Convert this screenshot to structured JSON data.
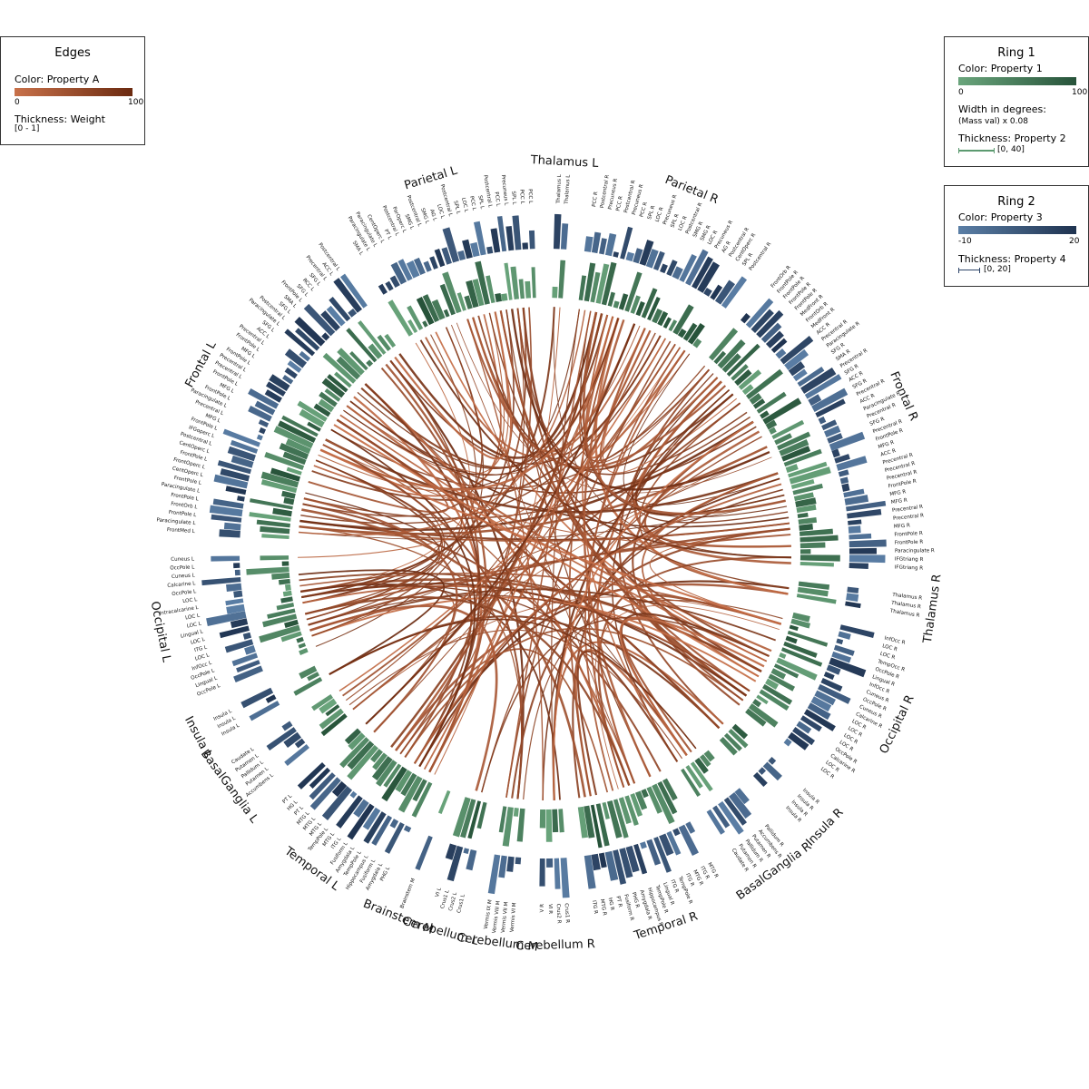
{
  "legends": {
    "edges": {
      "title": "Edges",
      "color_label": "Color: Property A",
      "color_min": "0",
      "color_max": "100",
      "color_from": "#c8714a",
      "color_to": "#6b2a10",
      "thickness_label": "Thickness: Weight",
      "thickness_range": "[0  -  1]"
    },
    "ring1": {
      "title": "Ring 1",
      "color_label": "Color: Property 1",
      "color_min": "0",
      "color_max": "100",
      "color_from": "#6aa57c",
      "color_to": "#27533a",
      "width_label": "Width in degrees:",
      "width_formula": "(Mass val) x 0.08",
      "thickness_label": "Thickness: Property 2",
      "thickness_range": "[0,  40]"
    },
    "ring2": {
      "title": "Ring 2",
      "color_label": "Color: Property 3",
      "color_min": "-10",
      "color_max": "20",
      "color_from": "#5b7fa6",
      "color_to": "#1f3350",
      "thickness_label": "Thickness: Property 4",
      "thickness_range": "[0,  20]"
    }
  },
  "groups": [
    {
      "name": "Thalamus L",
      "labels": [
        "Thalamus L",
        "Thalamus L"
      ]
    },
    {
      "name": "Parietal R",
      "labels": [
        "PCC R",
        "Postcentral R",
        "Precuneus R",
        "PCC R",
        "Postcentral R",
        "Precuneus R",
        "PCC R",
        "SPL R",
        "LOC R",
        "Precuneus R",
        "SPL R",
        "LOC R",
        "Postcentral R",
        "SMG R",
        "SMG R",
        "LOC R",
        "Precuneus R",
        "AG R",
        "Postcentral R",
        "CentOperc R",
        "SPL R",
        "Postcentral R"
      ]
    },
    {
      "name": "Frontal R",
      "labels": [
        "FrontOrb R",
        "FrontPole R",
        "FrontPole R",
        "FrontPole R",
        "FrontPole R",
        "MedFront R",
        "FrontOrb R",
        "MedFront R",
        "ACC R",
        "Precentral R",
        "Paracingulate R",
        "SFG R",
        "SMA R",
        "Precentral R",
        "SFG R",
        "ACC R",
        "SFG R",
        "Precentral R",
        "ACC R",
        "Paracingulate R",
        "Precentral R",
        "SFG R",
        "Precentral R",
        "FrontPole R",
        "MFG R",
        "ACC R",
        "Precentral R",
        "Precentral R",
        "Precentral R",
        "FrontPole R",
        "MFG R",
        "MFG R",
        "Precentral R",
        "Precentral R",
        "MFG R",
        "FrontPole R",
        "FrontPole R",
        "Paracingulate R",
        "IFGtriang R",
        "IFGtriang R"
      ]
    },
    {
      "name": "Thalamus R",
      "labels": [
        "Thalamus R",
        "Thalamus R",
        "Thalamus R"
      ]
    },
    {
      "name": "Occipital R",
      "labels": [
        "InfOcc R",
        "LOC R",
        "LOC R",
        "TempOcc R",
        "OccPole R",
        "Lingual R",
        "InfOcc R",
        "Cuneus R",
        "OccPole R",
        "Cuneus R",
        "Calcarine R",
        "LOC R",
        "LOC R",
        "LOC R",
        "LOC R",
        "OccPole R",
        "Calcarine R",
        "LOC R",
        "LOC R"
      ]
    },
    {
      "name": "Insula R",
      "labels": [
        "Insula R",
        "Insula R",
        "Insula R",
        "Insula R"
      ]
    },
    {
      "name": "BasalGanglia R",
      "labels": [
        "Pallidum R",
        "Accumbens R",
        "Putamen R",
        "Pallidum R",
        "Putamen R",
        "Caudate R"
      ]
    },
    {
      "name": "Temporal R",
      "labels": [
        "MTG R",
        "ITG R",
        "MTG R",
        "ITG R",
        "TempPole R",
        "ITG R",
        "Lingual R",
        "TempPole R",
        "Hippocampus R",
        "Amygdala R",
        "PHG R",
        "Fusiform R",
        "PT R",
        "HG R",
        "MTG R",
        "ITG R"
      ]
    },
    {
      "name": "Cerebellum R",
      "labels": [
        "Crus1 R",
        "Crus2 R",
        "VI R",
        "V R"
      ]
    },
    {
      "name": "Cerebellum M",
      "labels": [
        "Vermis VI M",
        "Vermis VII M",
        "Vermis VIII M",
        "Vermis IX M"
      ]
    },
    {
      "name": "Cerebellum L",
      "labels": [
        "Crus1 L",
        "Crus2 L",
        "Crus1 L",
        "VI L"
      ]
    },
    {
      "name": "Brainstem M",
      "labels": [
        "Brainstem M"
      ]
    },
    {
      "name": "Temporal L",
      "labels": [
        "PHG L",
        "Amygdala L",
        "Fusiform L",
        "Hippocampus L",
        "TempPole L",
        "Amygdala L",
        "Fusiform L",
        "ITG L",
        "MTG L",
        "TempPole L",
        "MTG L",
        "MTG L",
        "MTG L",
        "PT L",
        "HG L",
        "PT L"
      ]
    },
    {
      "name": "BasalGanglia L",
      "labels": [
        "Accumbens L",
        "Putamen L",
        "Pallidum L",
        "Putamen L",
        "Caudate L"
      ]
    },
    {
      "name": "Insula L",
      "labels": [
        "Insula L",
        "Insula L",
        "Insula L"
      ]
    },
    {
      "name": "Occipital L",
      "labels": [
        "OccPole L",
        "Lingual L",
        "OccPole L",
        "InfOcc L",
        "LOC L",
        "ITG L",
        "LOC L",
        "Lingual L",
        "LOC L",
        "LOC L",
        "Intracalcarine L",
        "LOC L",
        "OccPole L",
        "Calcarine L",
        "Cuneus L",
        "OccPole L",
        "Cuneus L"
      ]
    },
    {
      "name": "Frontal L",
      "labels": [
        "FrontMed L",
        "Paracingulate L",
        "FrontPole L",
        "FrontOrb L",
        "FrontPole L",
        "Paracingulate L",
        "FrontPole L",
        "CentOperc L",
        "FrontOperc L",
        "FrontPole L",
        "CentOperc L",
        "Postcentral L",
        "IFGoperc L",
        "FrontPole L",
        "MFG L",
        "Precentral L",
        "Paracingulate L",
        "FrontPole L",
        "MFG L",
        "FrontPole L",
        "Precentral L",
        "Precentral L",
        "FrontPole L",
        "MFG L",
        "FrontPole L",
        "Precentral L",
        "ACC L",
        "SFG L",
        "Paracingulate L",
        "Postcentral L",
        "SFG L",
        "SMA L",
        "FrontPole L",
        "SFG L",
        "RCC L",
        "SFG L",
        "Precentral L",
        "ACC L",
        "Postcentral L"
      ]
    },
    {
      "name": "Parietal L",
      "labels": [
        "SMA L",
        "Paracingulate L",
        "Paracingulate L",
        "CentOperc L",
        "PT L",
        "Postcentral L",
        "ParOperc L",
        "SMG L",
        "Postcentral L",
        "SMG L",
        "AG L",
        "LOC L",
        "Postcentral L",
        "SPL L",
        "LOC L",
        "PCC L",
        "SPL L",
        "Postcentral L",
        "PCC L",
        "Precuneus L",
        "SPL L",
        "PCC L",
        "PCC L"
      ]
    }
  ]
}
